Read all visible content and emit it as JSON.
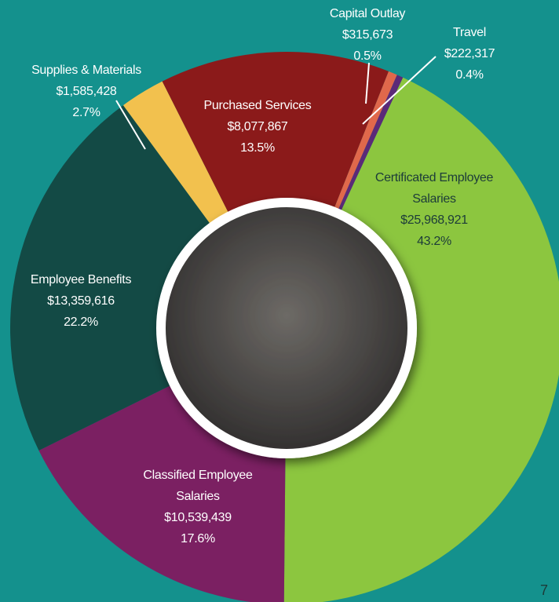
{
  "chart_data": {
    "type": "pie",
    "categories": [
      "Certificated Employee Salaries",
      "Classified Employee Salaries",
      "Employee Benefits",
      "Supplies & Materials",
      "Purchased Services",
      "Capital Outlay",
      "Travel"
    ],
    "values": [
      25968921,
      10539439,
      13359616,
      1585428,
      8077867,
      315673,
      222317
    ],
    "value_labels": [
      "$25,968,921",
      "$10,539,439",
      "$13,359,616",
      "$1,585,428",
      "$8,077,867",
      "$315,673",
      "$222,317"
    ],
    "share_labels": [
      "43.2%",
      "17.6%",
      "22.2%",
      "2.7%",
      "13.5%",
      "0.5%",
      "0.4%"
    ],
    "colors": [
      "#8cc63f",
      "#7b2062",
      "#134a45",
      "#f2c14e",
      "#8b1a1a",
      "#e0684b",
      "#5b2a78"
    ]
  },
  "page_number": "7"
}
